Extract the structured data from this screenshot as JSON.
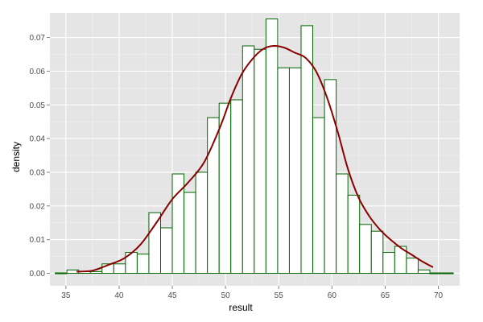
{
  "chart_data": {
    "type": "bar",
    "xlabel": "result",
    "ylabel": "density",
    "xlim": [
      33.5,
      72.0
    ],
    "ylim": [
      -0.0037,
      0.0773
    ],
    "x_ticks": [
      35,
      40,
      45,
      50,
      55,
      60,
      65,
      70
    ],
    "y_ticks": [
      0.0,
      0.01,
      0.02,
      0.03,
      0.04,
      0.05,
      0.06,
      0.07
    ],
    "y_tick_labels": [
      "0.00",
      "0.01",
      "0.02",
      "0.03",
      "0.04",
      "0.05",
      "0.06",
      "0.07"
    ],
    "grid": true,
    "bin_width": 1.1,
    "histogram": {
      "bin_starts": [
        34.0,
        35.1,
        36.2,
        37.3,
        38.4,
        39.5,
        40.6,
        41.7,
        42.8,
        43.9,
        45.0,
        46.1,
        47.2,
        48.3,
        49.4,
        50.5,
        51.6,
        52.7,
        53.8,
        54.9,
        56.0,
        57.1,
        58.2,
        59.3,
        60.4,
        61.5,
        62.6,
        63.7,
        64.8,
        65.9,
        67.0,
        68.1,
        69.2,
        70.3
      ],
      "density": [
        0.0,
        0.001,
        0.0005,
        0.0005,
        0.0028,
        0.0028,
        0.0062,
        0.0057,
        0.018,
        0.0135,
        0.0295,
        0.024,
        0.03,
        0.0462,
        0.0505,
        0.0515,
        0.0675,
        0.0665,
        0.0755,
        0.061,
        0.061,
        0.0735,
        0.0462,
        0.0575,
        0.0295,
        0.0232,
        0.0145,
        0.0125,
        0.0062,
        0.008,
        0.0045,
        0.001,
        0.0,
        0.0
      ]
    },
    "density_curve": {
      "x": [
        36.0,
        37.5,
        39.0,
        40.5,
        42.0,
        43.5,
        45.0,
        46.5,
        48.0,
        49.5,
        50.5,
        51.5,
        52.5,
        53.5,
        54.5,
        55.5,
        56.5,
        57.5,
        58.5,
        59.5,
        60.5,
        61.5,
        62.5,
        63.5,
        64.5,
        65.5,
        66.5,
        67.5,
        68.5,
        69.5
      ],
      "y": [
        0.0005,
        0.0008,
        0.0025,
        0.0045,
        0.0085,
        0.015,
        0.022,
        0.027,
        0.033,
        0.0435,
        0.052,
        0.059,
        0.0635,
        0.0665,
        0.0675,
        0.067,
        0.0655,
        0.064,
        0.06,
        0.0525,
        0.0425,
        0.031,
        0.0225,
        0.017,
        0.013,
        0.01,
        0.0075,
        0.0055,
        0.0035,
        0.0018
      ]
    },
    "colors": {
      "panel_background": "#e5e5e5",
      "grid_major": "#ffffff",
      "grid_minor": "#f2f2f2",
      "bar_fill": "#ffffff",
      "bar_outline": "#006400",
      "curve": "#8b0000"
    }
  }
}
